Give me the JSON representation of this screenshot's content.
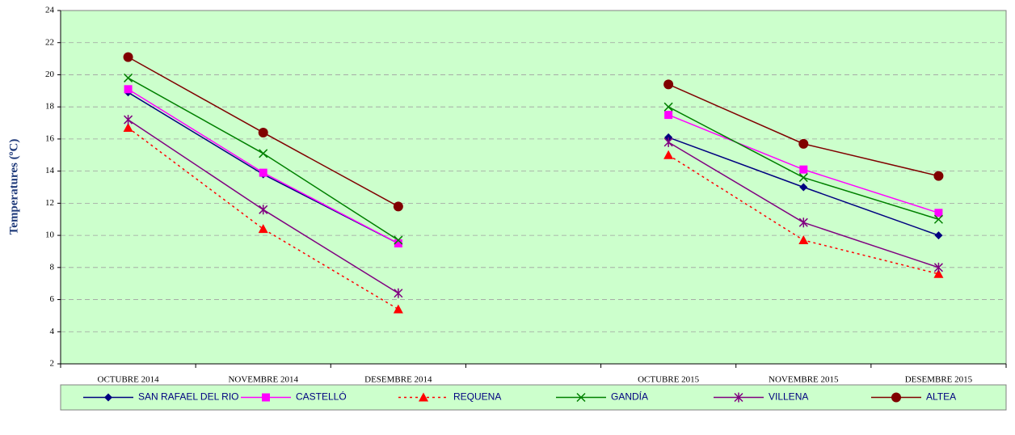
{
  "chart_data": {
    "type": "line",
    "y_label": "Temperatures  (ºC)",
    "categories": [
      "OCTUBRE 2014",
      "NOVEMBRE 2014",
      "DESEMBRE  2014",
      null,
      "OCTUBRE 2015",
      "NOVEMBRE 2015",
      "DESEMBRE  2015"
    ],
    "ylim": [
      2,
      24
    ],
    "yticks": [
      2,
      4,
      6,
      8,
      10,
      12,
      14,
      16,
      18,
      20,
      22,
      24
    ],
    "grid": true,
    "background": "#ccffcc",
    "legend": "bottom",
    "series": [
      {
        "name": "SAN RAFAEL DEL RIO",
        "color": "#000080",
        "marker": "diamond",
        "line_style": "solid",
        "values": [
          18.9,
          13.8,
          9.5,
          null,
          16.1,
          13.0,
          10.0
        ]
      },
      {
        "name": "CASTELLÓ",
        "color": "#ff00ff",
        "marker": "square",
        "line_style": "solid",
        "values": [
          19.1,
          13.9,
          9.5,
          null,
          17.5,
          14.1,
          11.4
        ]
      },
      {
        "name": "REQUENA",
        "color": "#ff0000",
        "marker": "triangle",
        "line_style": "dotted",
        "values": [
          16.7,
          10.4,
          5.4,
          null,
          15.0,
          9.7,
          7.6
        ]
      },
      {
        "name": "GANDÍA",
        "color": "#008000",
        "marker": "x",
        "line_style": "solid",
        "values": [
          19.8,
          15.1,
          9.7,
          null,
          18.0,
          13.6,
          11.0
        ]
      },
      {
        "name": "VILLENA",
        "color": "#800080",
        "marker": "star",
        "line_style": "solid",
        "values": [
          17.2,
          11.6,
          6.4,
          null,
          15.8,
          10.8,
          8.0
        ]
      },
      {
        "name": "ALTEA",
        "color": "#800000",
        "marker": "circle",
        "line_style": "solid",
        "values": [
          21.1,
          16.4,
          11.8,
          null,
          19.4,
          15.7,
          13.7
        ]
      }
    ]
  }
}
